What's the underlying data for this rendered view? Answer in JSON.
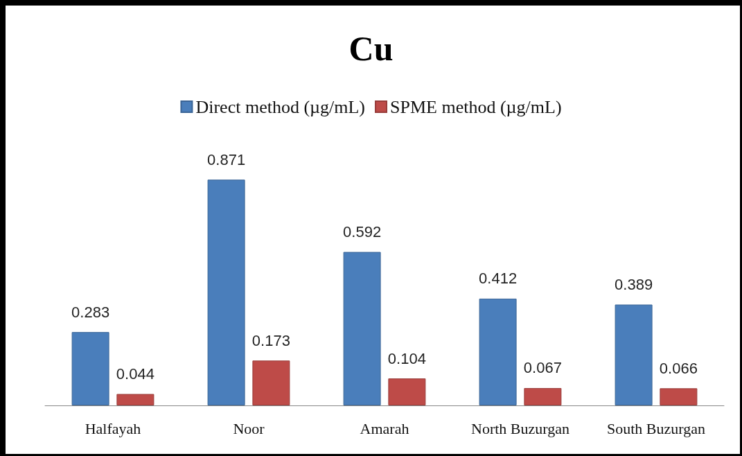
{
  "chart_data": {
    "type": "bar",
    "title": "Cu",
    "categories": [
      "Halfayah",
      "Noor",
      "Amarah",
      "North Buzurgan",
      "South Buzurgan"
    ],
    "series": [
      {
        "name": "Direct method (µg/mL)",
        "color": "#4a7ebb",
        "values": [
          0.283,
          0.871,
          0.592,
          0.412,
          0.389
        ]
      },
      {
        "name": "SPME method (µg/mL)",
        "color": "#be4b48",
        "values": [
          0.044,
          0.173,
          0.104,
          0.067,
          0.066
        ]
      }
    ],
    "data_labels": true,
    "legend": "top"
  }
}
